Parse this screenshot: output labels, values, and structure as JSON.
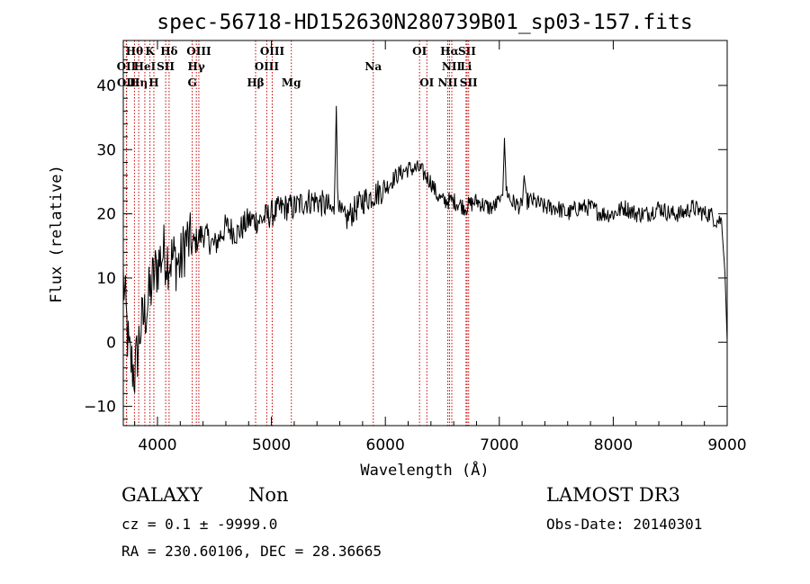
{
  "chart_data": {
    "type": "line",
    "title": "spec-56718-HD152630N280739B01_sp03-157.fits",
    "xlabel": "Wavelength (Å)",
    "ylabel": "Flux (relative)",
    "xlim": [
      3700,
      9000
    ],
    "ylim": [
      -13,
      47
    ],
    "xticks": [
      4000,
      5000,
      6000,
      7000,
      8000,
      9000
    ],
    "yticks": [
      -10,
      0,
      10,
      20,
      30,
      40
    ],
    "series": [
      {
        "name": "flux",
        "x": [
          3700,
          3750,
          3800,
          3850,
          3900,
          3950,
          4000,
          4050,
          4100,
          4150,
          4200,
          4250,
          4300,
          4400,
          4500,
          4600,
          4700,
          4800,
          4900,
          5000,
          5100,
          5200,
          5300,
          5400,
          5500,
          5550,
          5570,
          5580,
          5590,
          5600,
          5650,
          5700,
          5800,
          5900,
          6000,
          6100,
          6200,
          6300,
          6400,
          6450,
          6500,
          6600,
          6700,
          6800,
          6900,
          6950,
          7000,
          7030,
          7045,
          7060,
          7100,
          7200,
          7218,
          7240,
          7300,
          7400,
          7500,
          7600,
          7700,
          7800,
          7900,
          8000,
          8100,
          8200,
          8300,
          8400,
          8500,
          8600,
          8700,
          8800,
          8850,
          8900,
          8950,
          8980,
          9000
        ],
        "y": [
          10,
          -2,
          -5,
          2,
          5,
          9,
          12,
          14,
          13,
          13,
          12,
          16,
          15,
          17,
          15,
          18,
          17,
          19,
          19,
          20,
          21,
          21,
          22,
          22,
          21,
          20,
          37,
          24,
          21,
          20,
          19,
          20,
          22,
          23,
          24,
          26,
          27,
          27,
          25,
          23,
          22,
          22,
          21,
          22,
          21,
          21,
          22,
          23,
          32,
          24,
          22,
          21,
          26,
          22,
          22,
          21,
          21,
          20,
          21,
          21,
          20,
          20,
          21,
          20,
          20,
          21,
          20,
          20,
          21,
          20,
          20,
          19,
          19,
          11,
          0
        ]
      }
    ],
    "line_markers": [
      {
        "name": "OII",
        "x": 3727,
        "row": 2
      },
      {
        "name": "OII",
        "x": 3729,
        "row": 3
      },
      {
        "name": "Hθ",
        "x": 3798,
        "row": 1
      },
      {
        "name": "Hη",
        "x": 3835,
        "row": 3
      },
      {
        "name": "HeI",
        "x": 3889,
        "row": 2
      },
      {
        "name": "K",
        "x": 3934,
        "row": 1
      },
      {
        "name": "H",
        "x": 3968,
        "row": 3
      },
      {
        "name": "Hδ",
        "x": 4102,
        "row": 1
      },
      {
        "name": "SII",
        "x": 4072,
        "row": 2
      },
      {
        "name": "OIII",
        "x": 4363,
        "row": 1
      },
      {
        "name": "Hγ",
        "x": 4341,
        "row": 2
      },
      {
        "name": "G",
        "x": 4305,
        "row": 3
      },
      {
        "name": "Hβ",
        "x": 4861,
        "row": 3
      },
      {
        "name": "OIII",
        "x": 4959,
        "row": 2
      },
      {
        "name": "OIII",
        "x": 5007,
        "row": 1
      },
      {
        "name": "Mg",
        "x": 5175,
        "row": 3
      },
      {
        "name": "Na",
        "x": 5894,
        "row": 2
      },
      {
        "name": "OI",
        "x": 6300,
        "row": 1
      },
      {
        "name": "OI",
        "x": 6364,
        "row": 3
      },
      {
        "name": "NII",
        "x": 6548,
        "row": 3
      },
      {
        "name": "Hα",
        "x": 6563,
        "row": 1
      },
      {
        "name": "NII",
        "x": 6583,
        "row": 2
      },
      {
        "name": "SII",
        "x": 6717,
        "row": 1
      },
      {
        "name": "Li",
        "x": 6708,
        "row": 2
      },
      {
        "name": "SII",
        "x": 6731,
        "row": 3
      }
    ]
  },
  "info": {
    "class_label": "GALAXY",
    "subclass_label": "Non",
    "survey_label": "LAMOST DR3",
    "cz_text": "cz = 0.1 ± -9999.0",
    "obs_date_text": "Obs-Date: 20140301",
    "radec_text": "RA = 230.60106, DEC =  28.36665"
  }
}
